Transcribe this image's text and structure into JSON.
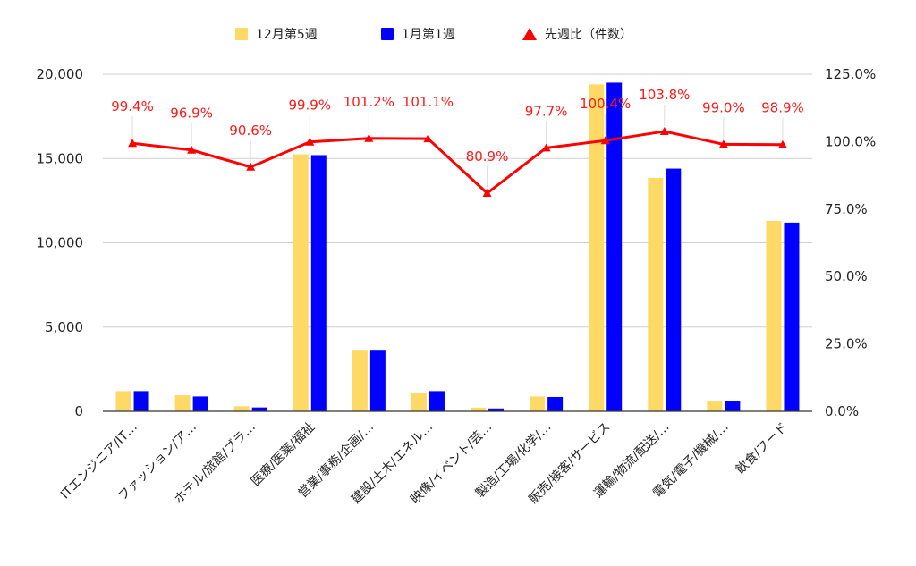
{
  "chart_data": {
    "type": "bar",
    "categories": [
      "ITエンジニア/IT…",
      "ファッション/ア…",
      "ホテル/旅館/ブラ…",
      "医療/医薬/福祉",
      "営業/事務/企画/…",
      "建設/土木/エネル…",
      "映像/イベント/芸…",
      "製造/工場/化学/…",
      "販売/接客/サービス",
      "運輸/物流/配送/…",
      "電気/電子/機械/…",
      "飲食/フード"
    ],
    "series": [
      {
        "name": "12月第5週",
        "kind": "bar",
        "axis": "left",
        "color": "#FFD966",
        "values": [
          1200,
          950,
          300,
          15250,
          3650,
          1100,
          220,
          880,
          19400,
          13850,
          580,
          11300
        ]
      },
      {
        "name": "1月第1週",
        "kind": "bar",
        "axis": "left",
        "color": "#0000FF",
        "values": [
          1200,
          880,
          230,
          15200,
          3650,
          1200,
          170,
          850,
          19500,
          14400,
          600,
          11200
        ]
      },
      {
        "name": "先週比（件数）",
        "kind": "line",
        "axis": "right",
        "color": "#FF0000",
        "values": [
          99.4,
          96.9,
          90.6,
          99.9,
          101.2,
          101.1,
          80.9,
          97.7,
          100.4,
          103.8,
          99.0,
          98.9
        ],
        "labels": [
          "99.4%",
          "96.9%",
          "90.6%",
          "99.9%",
          "101.2%",
          "101.1%",
          "80.9%",
          "97.7%",
          "100.4%",
          "103.8%",
          "99.0%",
          "98.9%"
        ]
      }
    ],
    "y_left": {
      "ylim": [
        0,
        20000
      ],
      "ticks": [
        0,
        5000,
        10000,
        15000,
        20000
      ],
      "tick_labels": [
        "0",
        "5,000",
        "10,000",
        "15,000",
        "20,000"
      ]
    },
    "y_right": {
      "ylim": [
        0,
        125
      ],
      "ticks": [
        0,
        25,
        50,
        75,
        100,
        125
      ],
      "tick_labels": [
        "0.0%",
        "25.0%",
        "50.0%",
        "75.0%",
        "100.0%",
        "125.0%"
      ]
    },
    "grid": true,
    "legend_position": "top-center"
  }
}
